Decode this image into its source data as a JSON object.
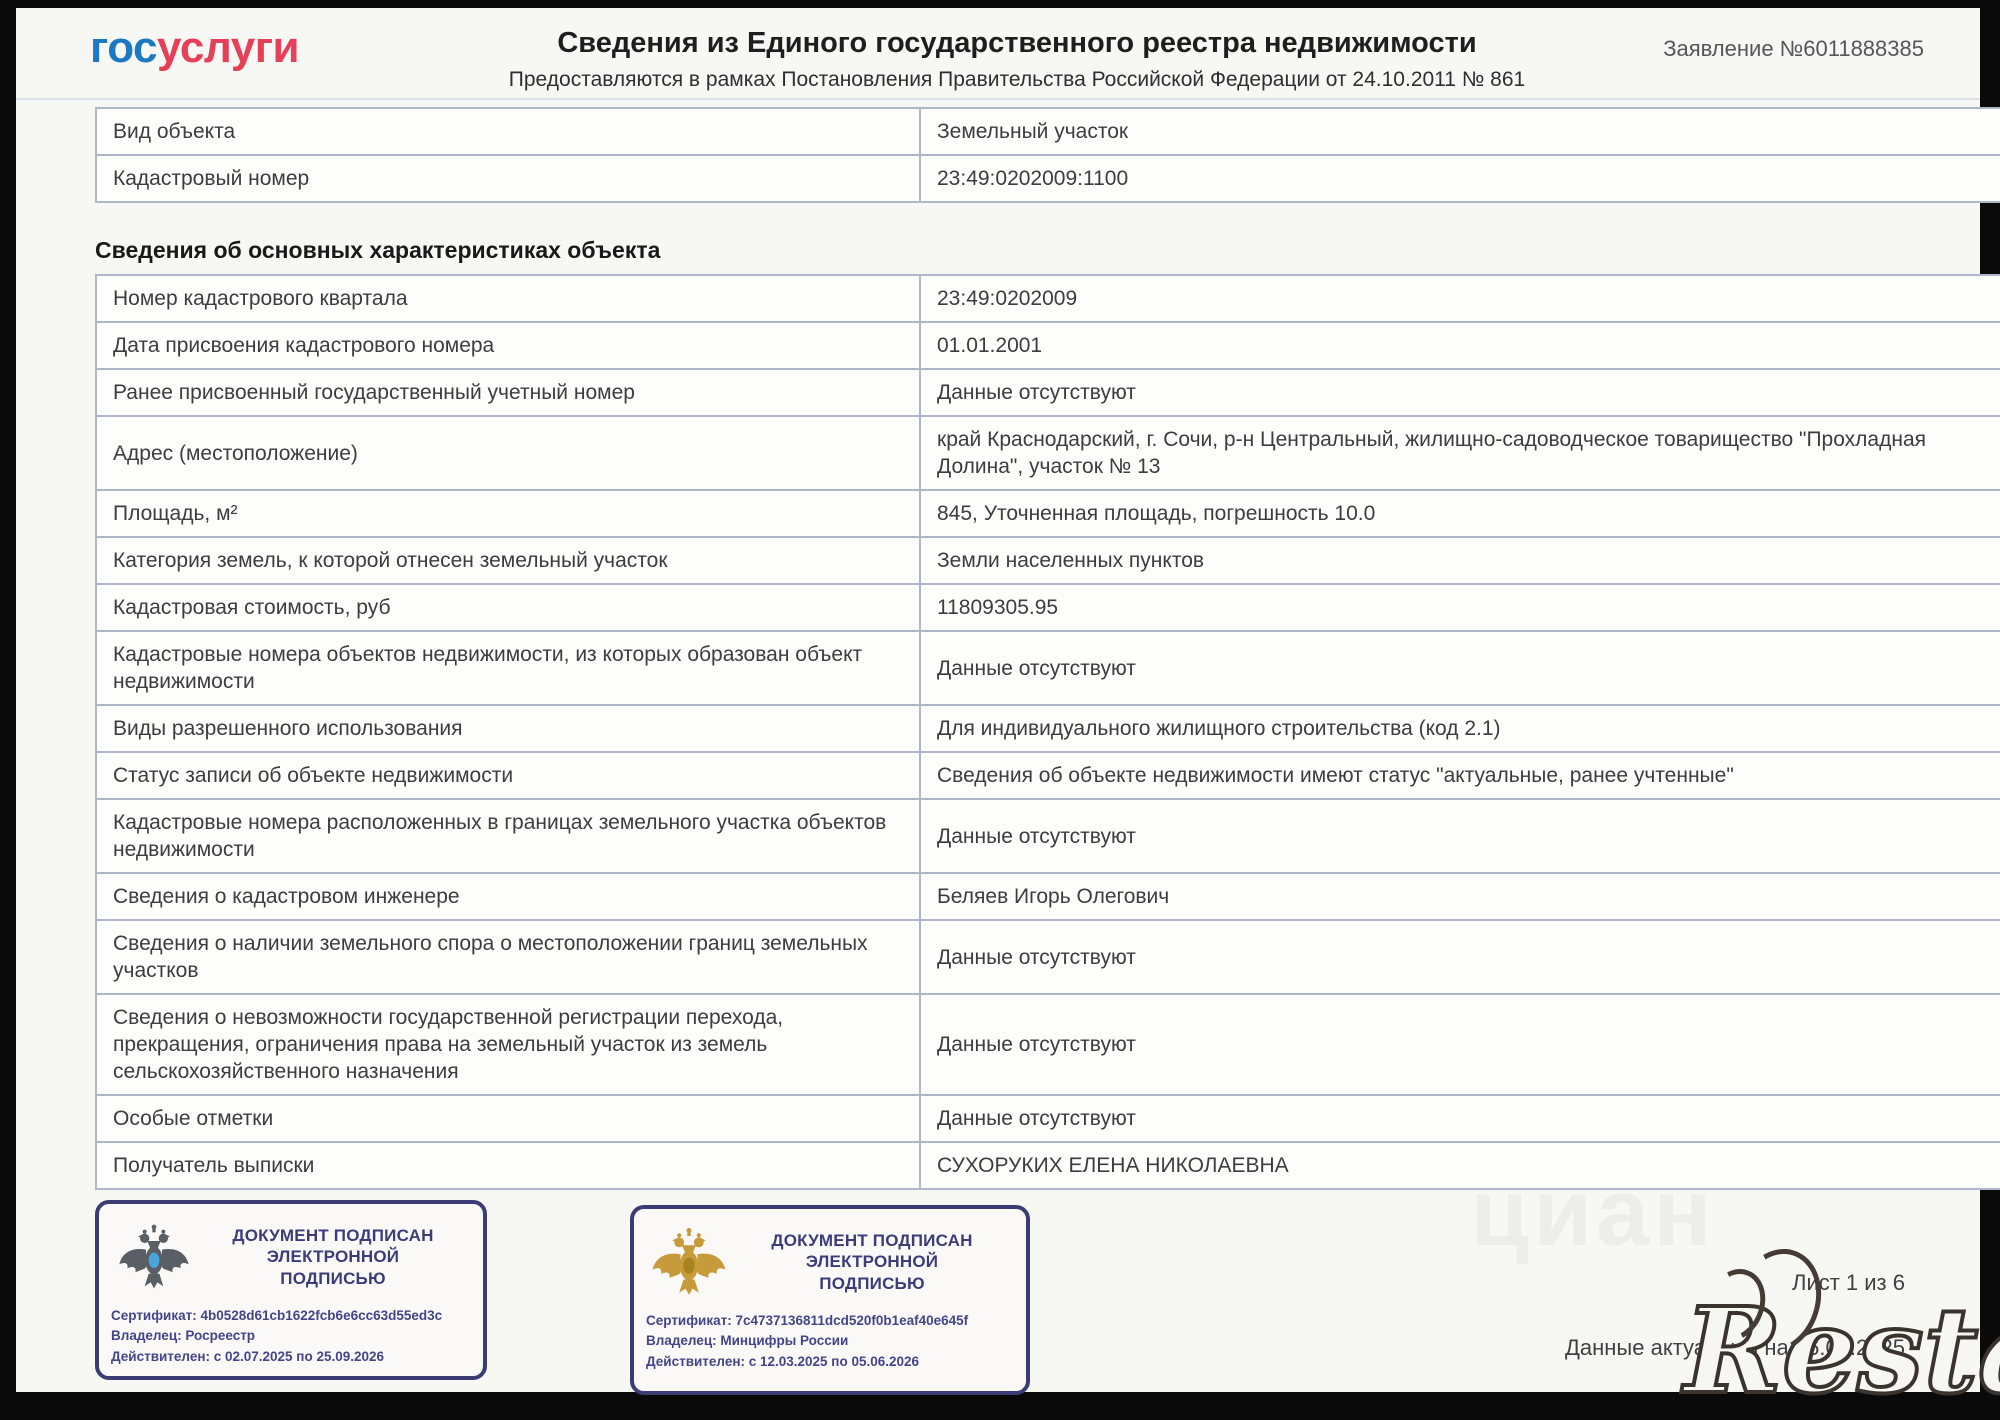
{
  "header": {
    "logo": {
      "part1": "гос",
      "part2": "услуги"
    },
    "title": "Сведения из Единого государственного реестра недвижимости",
    "subtitle": "Предоставляются в рамках Постановления Правительства Российской Федерации от 24.10.2011 № 861",
    "application_number": "Заявление №6011888385"
  },
  "object_table": {
    "rows": [
      {
        "label": "Вид объекта",
        "value": "Земельный участок"
      },
      {
        "label": "Кадастровый номер",
        "value": "23:49:0202009:1100"
      }
    ]
  },
  "section": {
    "title": "Сведения об основных характеристиках объекта",
    "rows": [
      {
        "label": "Номер кадастрового квартала",
        "value": "23:49:0202009"
      },
      {
        "label": "Дата присвоения кадастрового номера",
        "value": "01.01.2001"
      },
      {
        "label": "Ранее присвоенный государственный учетный номер",
        "value": "Данные отсутствуют"
      },
      {
        "label": "Адрес (местоположение)",
        "value": "край Краснодарский, г. Сочи, р-н Центральный, жилищно-садоводческое товарищество \"Прохладная Долина\", участок № 13"
      },
      {
        "label": "Площадь, м²",
        "value": "845, Уточненная площадь, погрешность 10.0"
      },
      {
        "label": "Категория земель, к которой отнесен земельный участок",
        "value": "Земли населенных пунктов"
      },
      {
        "label": "Кадастровая стоимость, руб",
        "value": "11809305.95"
      },
      {
        "label": "Кадастровые номера объектов недвижимости, из которых образован объект недвижимости",
        "value": "Данные отсутствуют"
      },
      {
        "label": "Виды разрешенного использования",
        "value": "Для индивидуального жилищного строительства (код 2.1)"
      },
      {
        "label": "Статус записи об объекте недвижимости",
        "value": "Сведения об объекте недвижимости имеют статус \"актуальные, ранее учтенные\""
      },
      {
        "label": "Кадастровые номера расположенных в границах земельного участка объектов недвижимости",
        "value": "Данные отсутствуют"
      },
      {
        "label": "Сведения о кадастровом инженере",
        "value": "Беляев Игорь Олегович"
      },
      {
        "label": "Сведения о наличии земельного спора о местоположении границ земельных участков",
        "value": "Данные отсутствуют"
      },
      {
        "label": "Сведения о невозможности государственной регистрации перехода, прекращения, ограничения права на земельный участок из земель сельскохозяйственного назначения",
        "value": "Данные отсутствуют"
      },
      {
        "label": "Особые отметки",
        "value": "Данные отсутствуют"
      },
      {
        "label": "Получатель выписки",
        "value": "СУХОРУКИХ ЕЛЕНА НИКОЛАЕВНА"
      }
    ]
  },
  "stamps": [
    {
      "title": "ДОКУМЕНТ ПОДПИСАН ЭЛЕКТРОННОЙ ПОДПИСЬЮ",
      "certificate": "Сертификат: 4b0528d61cb1622fcb6e6cc63d55ed3c",
      "owner": "Владелец: Росреестр",
      "validity": "Действителен: с 02.07.2025 по 25.09.2026",
      "emblem": "rosreestr-double-headed-eagle"
    },
    {
      "title": "ДОКУМЕНТ ПОДПИСАН ЭЛЕКТРОННОЙ ПОДПИСЬЮ",
      "certificate": "Сертификат: 7c4737136811dcd520f0b1eaf40e645f",
      "owner": "Владелец: Минцифры России",
      "validity": "Действителен: с 12.03.2025 по 05.06.2026",
      "emblem": "russia-coat-of-arms-double-headed-eagle"
    }
  ],
  "footer": {
    "sheet": "Лист 1 из 6",
    "data_actual": "Данные актуальны на 26.08.2025"
  },
  "watermarks": {
    "cian": "циан",
    "restate": "Restate"
  },
  "colors": {
    "logo_blue": "#1d78c2",
    "logo_red": "#e64058",
    "table_border": "#adb7c8",
    "stamp_navy": "#3c3c74",
    "rosreestr_eagle_gray": "#5a5f66",
    "rosreestr_shield_blue": "#4aa3dd",
    "coat_of_arms_gold": "#c79b3b",
    "page_background": "#f7f7f4"
  }
}
